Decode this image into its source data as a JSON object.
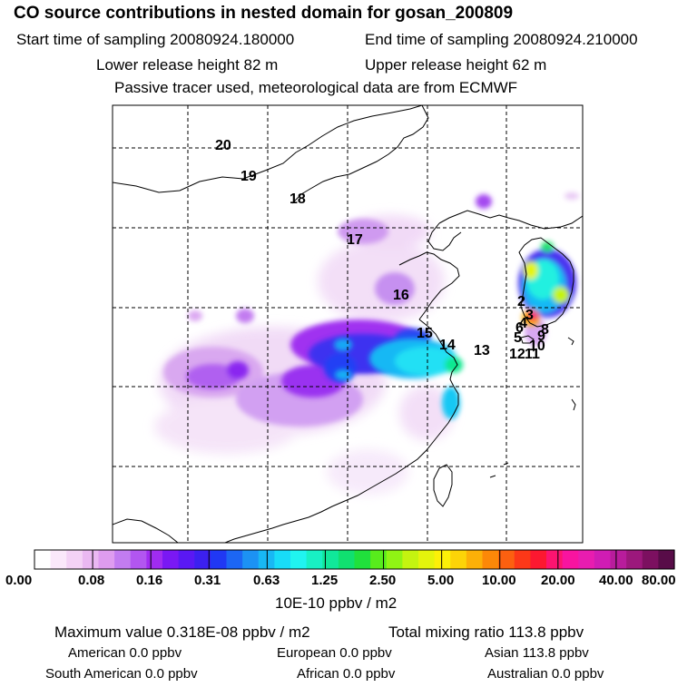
{
  "header": {
    "title": "CO  source contributions in nested domain for gosan_200809",
    "start_label": "Start time of sampling 20080924.180000",
    "end_label": "End time of sampling 20080924.210000",
    "lower_label": "Lower release height   82 m",
    "upper_label": "Upper release height   62 m",
    "tracer_label": "Passive tracer used, meteorological data are from ECMWF"
  },
  "map": {
    "trajectory_labels": [
      "20",
      "19",
      "18",
      "17",
      "16",
      "15",
      "14",
      "13",
      "2",
      "3",
      "4",
      "5",
      "6",
      "8",
      "9",
      "10",
      "11",
      "12"
    ]
  },
  "colorbar": {
    "tick_labels": [
      "0.00",
      "0.08",
      "0.16",
      "0.31",
      "0.63",
      "1.25",
      "2.50",
      "5.00",
      "10.00",
      "20.00",
      "40.00",
      "80.00"
    ],
    "unit": "10E-10 ppbv / m2",
    "colors": [
      "#ffffff",
      "#fbe8fb",
      "#f4d2f6",
      "#eab8f2",
      "#de9cef",
      "#c27cf0",
      "#b256f0",
      "#a02cf0",
      "#7a18f4",
      "#5a18f4",
      "#3c20f0",
      "#2038f4",
      "#1c66f4",
      "#1c92f4",
      "#18b8f4",
      "#18dcf8",
      "#20f4f0",
      "#18f0c4",
      "#10e89a",
      "#10e070",
      "#20e03c",
      "#58ec1c",
      "#90f414",
      "#c4f410",
      "#e4f40c",
      "#fcf008",
      "#fcd408",
      "#fcb008",
      "#fc8808",
      "#fc6010",
      "#fc3818",
      "#fc1830",
      "#fc1470",
      "#f814a0",
      "#e81cb0",
      "#d01cb4",
      "#b81c9c",
      "#9c187c",
      "#7c1060",
      "#580c48"
    ]
  },
  "footer": {
    "max_label": "Maximum value  0.318E-08 ppbv / m2",
    "total_label": "Total mixing ratio      113.8 ppbv",
    "american": "American        0.0 ppbv",
    "european": "European        0.0 ppbv",
    "asian": "Asian      113.8 ppbv",
    "south_american": "South American        0.0 ppbv",
    "african": "African        0.0 ppbv",
    "australian": "Australian        0.0 ppbv"
  }
}
